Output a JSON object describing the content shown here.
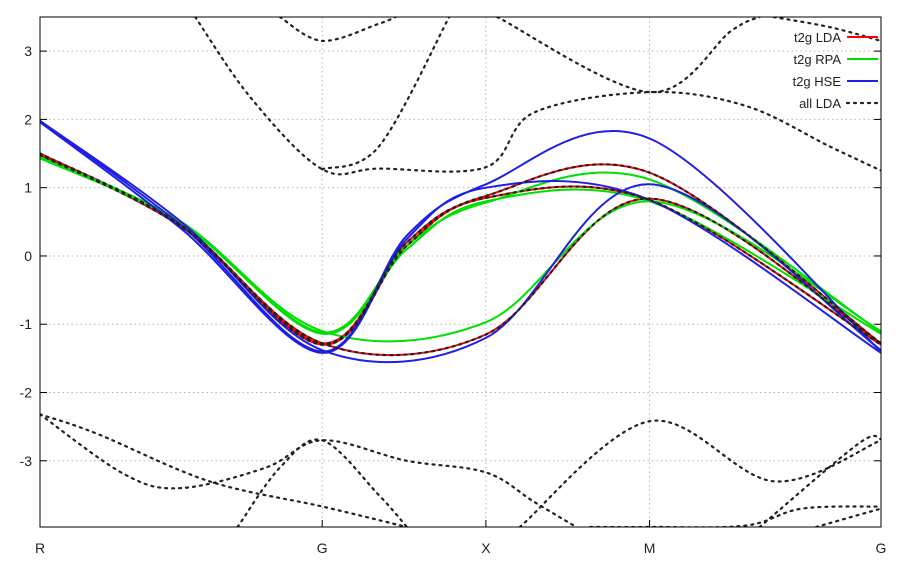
{
  "chart_data": {
    "type": "line",
    "title": "",
    "xlabel": "",
    "ylabel": "",
    "x_ticks": [
      {
        "x": 0,
        "label": "R"
      },
      {
        "x": 1,
        "label": "G"
      },
      {
        "x": 1.58,
        "label": "X"
      },
      {
        "x": 2.16,
        "label": "M"
      },
      {
        "x": 2.98,
        "label": "G"
      }
    ],
    "xlim": [
      0,
      2.98
    ],
    "ylim": [
      -3.97,
      3.5
    ],
    "y_ticks": [
      -3,
      -2,
      -1,
      0,
      1,
      2,
      3
    ],
    "grid": true,
    "legend_position": "top-right",
    "series": [
      {
        "name": "t2g LDA",
        "style": "line",
        "color": "#ff0000",
        "bands": [
          [
            [
              0,
              1.5
            ],
            [
              0.5,
              0.45
            ],
            [
              1,
              -1.28
            ],
            [
              1.58,
              -1.15
            ],
            [
              2.16,
              0.84
            ],
            [
              2.98,
              -1.28
            ]
          ],
          [
            [
              0,
              1.5
            ],
            [
              0.5,
              0.45
            ],
            [
              1,
              -1.28
            ],
            [
              1.3,
              0.2
            ],
            [
              1.58,
              0.88
            ],
            [
              2.16,
              1.22
            ],
            [
              2.98,
              -1.28
            ]
          ],
          [
            [
              0,
              1.48
            ],
            [
              0.5,
              0.43
            ],
            [
              1,
              -1.3
            ],
            [
              1.3,
              0.15
            ],
            [
              1.58,
              0.85
            ],
            [
              2.16,
              0.82
            ],
            [
              2.98,
              -1.3
            ]
          ]
        ]
      },
      {
        "name": "t2g RPA",
        "style": "line",
        "color": "#00e000",
        "bands": [
          [
            [
              0,
              1.45
            ],
            [
              0.5,
              0.5
            ],
            [
              1,
              -1.1
            ],
            [
              1.58,
              -0.97
            ],
            [
              2.16,
              0.8
            ],
            [
              2.98,
              -1.1
            ]
          ],
          [
            [
              0,
              1.45
            ],
            [
              0.5,
              0.5
            ],
            [
              1,
              -1.12
            ],
            [
              1.3,
              0.15
            ],
            [
              1.58,
              0.78
            ],
            [
              2.16,
              1.12
            ],
            [
              2.98,
              -1.12
            ]
          ],
          [
            [
              0,
              1.43
            ],
            [
              0.5,
              0.48
            ],
            [
              1,
              -1.14
            ],
            [
              1.3,
              0.1
            ],
            [
              1.58,
              0.8
            ],
            [
              2.16,
              0.8
            ],
            [
              2.98,
              -1.14
            ]
          ]
        ]
      },
      {
        "name": "t2g HSE",
        "style": "line",
        "color": "#1e1ee6",
        "bands": [
          [
            [
              0,
              1.98
            ],
            [
              0.5,
              0.5
            ],
            [
              1,
              -1.38
            ],
            [
              1.58,
              -1.2
            ],
            [
              2.16,
              1.05
            ],
            [
              2.98,
              -1.38
            ]
          ],
          [
            [
              0,
              1.98
            ],
            [
              0.5,
              0.45
            ],
            [
              1,
              -1.4
            ],
            [
              1.3,
              0.3
            ],
            [
              1.58,
              1.05
            ],
            [
              2.16,
              1.72
            ],
            [
              2.98,
              -1.4
            ]
          ],
          [
            [
              0,
              1.96
            ],
            [
              0.5,
              0.4
            ],
            [
              1,
              -1.42
            ],
            [
              1.3,
              0.25
            ],
            [
              1.58,
              1.0
            ],
            [
              2.16,
              0.82
            ],
            [
              2.98,
              -1.42
            ]
          ]
        ]
      },
      {
        "name": "all LDA",
        "style": "dots",
        "color": "#222222",
        "bands": [
          [
            [
              0,
              1.5
            ],
            [
              0.5,
              0.45
            ],
            [
              1,
              -1.28
            ],
            [
              1.58,
              -1.15
            ],
            [
              2.16,
              0.84
            ],
            [
              2.98,
              -1.28
            ]
          ],
          [
            [
              0,
              1.5
            ],
            [
              0.5,
              0.45
            ],
            [
              1,
              -1.28
            ],
            [
              1.3,
              0.2
            ],
            [
              1.58,
              0.88
            ],
            [
              2.16,
              1.22
            ],
            [
              2.98,
              -1.28
            ]
          ],
          [
            [
              0,
              1.48
            ],
            [
              0.5,
              0.43
            ],
            [
              1,
              -1.3
            ],
            [
              1.3,
              0.15
            ],
            [
              1.58,
              0.85
            ],
            [
              2.16,
              0.82
            ],
            [
              2.98,
              -1.3
            ]
          ],
          [
            [
              0.55,
              3.5
            ],
            [
              0.75,
              2.3
            ],
            [
              1,
              1.27
            ],
            [
              1.2,
              1.28
            ],
            [
              1.58,
              1.3
            ],
            [
              1.75,
              2.1
            ],
            [
              2.16,
              2.4
            ],
            [
              2.5,
              2.2
            ],
            [
              2.8,
              1.6
            ],
            [
              2.98,
              1.25
            ]
          ],
          [
            [
              0.85,
              3.5
            ],
            [
              1,
              3.15
            ],
            [
              1.2,
              3.4
            ],
            [
              1.26,
              3.5
            ]
          ],
          [
            [
              1.0,
              1.27
            ],
            [
              1.2,
              1.6
            ],
            [
              1.45,
              3.5
            ]
          ],
          [
            [
              1.62,
              3.5
            ],
            [
              2.16,
              2.4
            ],
            [
              2.45,
              3.3
            ],
            [
              2.55,
              3.5
            ]
          ],
          [
            [
              2.6,
              3.5
            ],
            [
              2.8,
              3.35
            ],
            [
              2.98,
              3.15
            ]
          ],
          [
            [
              0,
              -2.32
            ],
            [
              0.2,
              -2.6
            ],
            [
              0.6,
              -3.3
            ],
            [
              1,
              -3.67
            ],
            [
              1.3,
              -3.97
            ]
          ],
          [
            [
              0,
              -2.32
            ],
            [
              0.3,
              -3.2
            ],
            [
              0.5,
              -3.4
            ],
            [
              0.8,
              -3.1
            ],
            [
              1,
              -2.7
            ],
            [
              1.3,
              -3.0
            ],
            [
              1.58,
              -3.17
            ],
            [
              1.75,
              -3.6
            ],
            [
              1.9,
              -3.97
            ]
          ],
          [
            [
              0.7,
              -3.97
            ],
            [
              0.85,
              -3.1
            ],
            [
              1,
              -2.7
            ],
            [
              1.2,
              -3.5
            ],
            [
              1.3,
              -3.97
            ]
          ],
          [
            [
              1.7,
              -3.97
            ],
            [
              2.16,
              -2.42
            ],
            [
              2.6,
              -3.3
            ],
            [
              2.98,
              -2.7
            ]
          ],
          [
            [
              1.95,
              -3.97
            ],
            [
              2.16,
              -3.97
            ],
            [
              2.5,
              -3.95
            ],
            [
              2.7,
              -3.7
            ],
            [
              2.98,
              -3.67
            ]
          ],
          [
            [
              2.55,
              -3.97
            ],
            [
              2.9,
              -2.75
            ],
            [
              2.98,
              -2.68
            ]
          ],
          [
            [
              2.75,
              -3.97
            ],
            [
              2.98,
              -3.7
            ]
          ]
        ]
      }
    ]
  }
}
